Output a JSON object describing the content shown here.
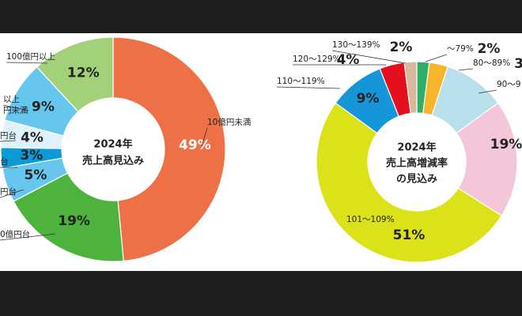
{
  "chart_data": [
    {
      "type": "pie",
      "center_text": [
        "2024年",
        "売上高見込み"
      ],
      "categories": [
        "10億円未満",
        "0億円台",
        "円台",
        "台",
        "円台",
        "以上\n円未満",
        "100億円以上"
      ],
      "values": [
        49,
        19,
        5,
        3,
        4,
        9,
        12
      ],
      "value_labels": [
        "49%",
        "19%",
        "5%",
        "3%",
        "4%",
        "9%",
        "12%"
      ],
      "colors": [
        "#ee7047",
        "#4db33d",
        "#67c6ee",
        "#0a9ad6",
        "#dff1fa",
        "#67c6ee",
        "#a3d17a"
      ]
    },
    {
      "type": "pie",
      "center_text": [
        "2024年",
        "売上高増減率",
        "の見込み"
      ],
      "categories": [
        "〜79%",
        "80〜89%",
        "90〜9",
        null,
        "101〜109%",
        "110〜119%",
        "120〜129%",
        "130〜139%"
      ],
      "values": [
        2,
        3,
        10,
        19,
        51,
        9,
        4,
        2
      ],
      "value_labels": [
        "2%",
        "3",
        null,
        "19%",
        "51%",
        "9%",
        "4%",
        "2%"
      ],
      "colors": [
        "#2fae6a",
        "#f7b52c",
        "#b8e0ea",
        "#f4c6d9",
        "#dce21a",
        "#1596d8",
        "#e60f1e",
        "#d9b99b"
      ]
    }
  ]
}
